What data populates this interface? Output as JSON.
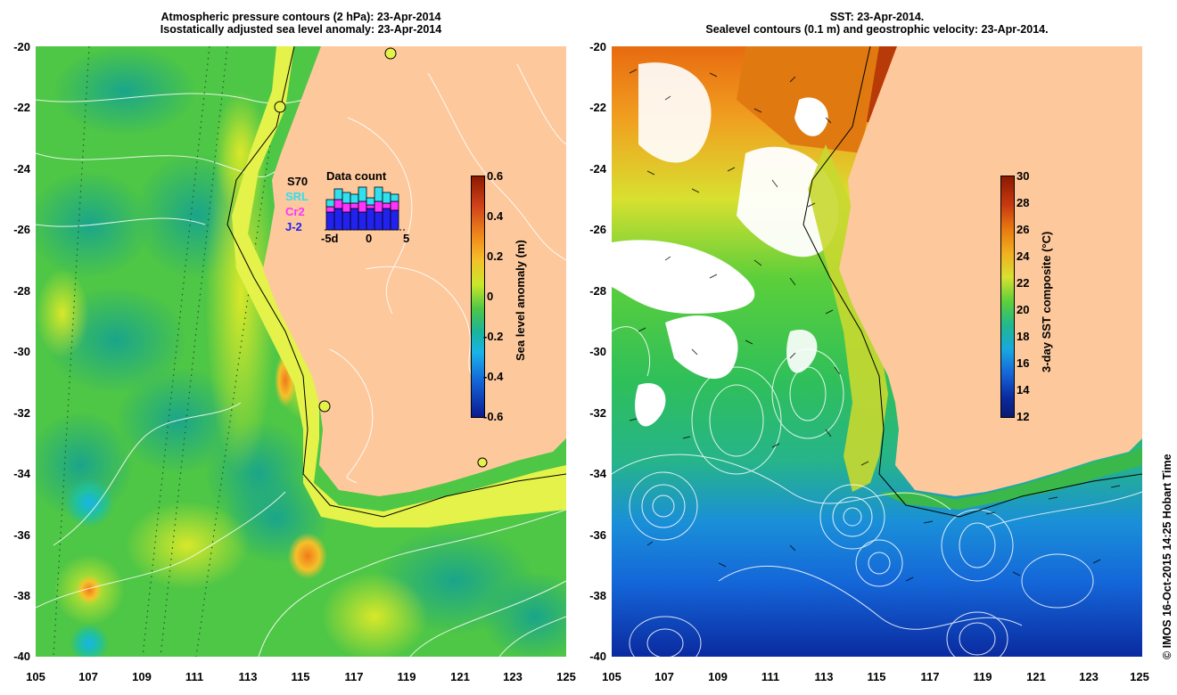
{
  "left_panel": {
    "title_line1": "Atmospheric pressure contours (2 hPa): 23-Apr-2014",
    "title_line2": "Isostatically adjusted sea level anomaly: 23-Apr-2014",
    "colorbar_label": "Sea level anomaly (m)",
    "colorbar_ticks": [
      "0.6",
      "0.4",
      "0.2",
      "0",
      "-0.2",
      "-0.4",
      "-0.6"
    ],
    "data_count": {
      "title": "Data count",
      "satellites": [
        "S70",
        "SRL",
        "Cr2",
        "J-2"
      ],
      "satellite_colors": [
        "#000000",
        "#30e0f0",
        "#ff33ff",
        "#2222ee"
      ],
      "x_ticks": [
        "-5d",
        "0",
        "5"
      ]
    }
  },
  "right_panel": {
    "title_line1": "SST: 23-Apr-2014.",
    "title_line2": "Sealevel contours (0.1 m) and geostrophic velocity: 23-Apr-2014.",
    "colorbar_label": "3-day SST composite (°C)",
    "colorbar_ticks": [
      "30",
      "28",
      "26",
      "24",
      "22",
      "20",
      "18",
      "16",
      "14",
      "12"
    ]
  },
  "lat_ticks": [
    "-20",
    "-22",
    "-24",
    "-26",
    "-28",
    "-30",
    "-32",
    "-34",
    "-36",
    "-38",
    "-40"
  ],
  "lon_ticks": [
    "105",
    "107",
    "109",
    "111",
    "113",
    "115",
    "117",
    "119",
    "121",
    "123",
    "125"
  ],
  "credit": "© IMOS 16-Oct-2015 14:25 Hobart Time",
  "colors": {
    "land": "#fdc89c",
    "ocean_green": "#5ccf3a",
    "sst_blue": "#1466d8"
  }
}
